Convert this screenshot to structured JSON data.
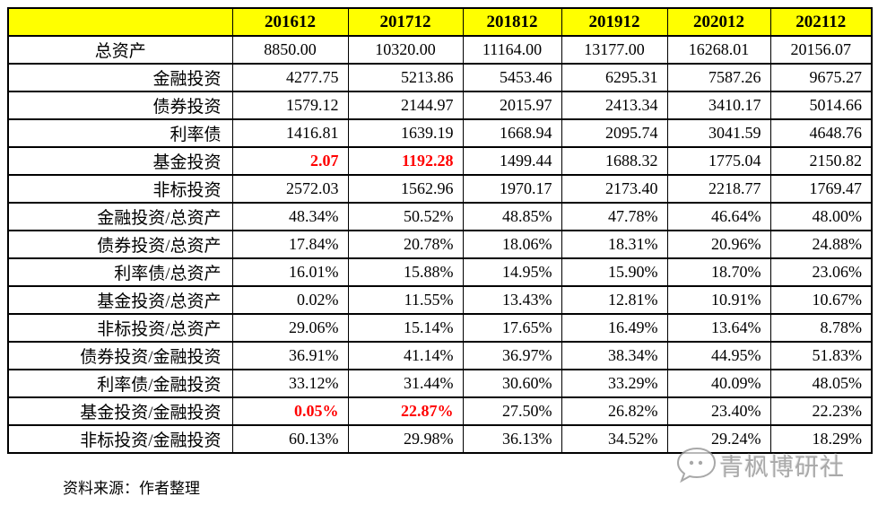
{
  "chart_data": {
    "type": "table",
    "corner_label": "",
    "columns": [
      "201612",
      "201712",
      "201812",
      "201912",
      "202012",
      "202112"
    ],
    "rows": [
      {
        "label": "总资产",
        "values": [
          "8850.00",
          "10320.00",
          "11164.00",
          "13177.00",
          "16268.01",
          "20156.07"
        ],
        "center": true
      },
      {
        "label": "金融投资",
        "values": [
          "4277.75",
          "5213.86",
          "5453.46",
          "6295.31",
          "7587.26",
          "9675.27"
        ]
      },
      {
        "label": "债券投资",
        "values": [
          "1579.12",
          "2144.97",
          "2015.97",
          "2413.34",
          "3410.17",
          "5014.66"
        ]
      },
      {
        "label": "利率债",
        "values": [
          "1416.81",
          "1639.19",
          "1668.94",
          "2095.74",
          "3041.59",
          "4648.76"
        ]
      },
      {
        "label": "基金投资",
        "values": [
          "2.07",
          "1192.28",
          "1499.44",
          "1688.32",
          "1775.04",
          "2150.82"
        ],
        "red": [
          0,
          1
        ]
      },
      {
        "label": "非标投资",
        "values": [
          "2572.03",
          "1562.96",
          "1970.17",
          "2173.40",
          "2218.77",
          "1769.47"
        ]
      },
      {
        "label": "金融投资/总资产",
        "values": [
          "48.34%",
          "50.52%",
          "48.85%",
          "47.78%",
          "46.64%",
          "48.00%"
        ]
      },
      {
        "label": "债券投资/总资产",
        "values": [
          "17.84%",
          "20.78%",
          "18.06%",
          "18.31%",
          "20.96%",
          "24.88%"
        ]
      },
      {
        "label": "利率债/总资产",
        "values": [
          "16.01%",
          "15.88%",
          "14.95%",
          "15.90%",
          "18.70%",
          "23.06%"
        ]
      },
      {
        "label": "基金投资/总资产",
        "values": [
          "0.02%",
          "11.55%",
          "13.43%",
          "12.81%",
          "10.91%",
          "10.67%"
        ]
      },
      {
        "label": "非标投资/总资产",
        "values": [
          "29.06%",
          "15.14%",
          "17.65%",
          "16.49%",
          "13.64%",
          "8.78%"
        ]
      },
      {
        "label": "债券投资/金融投资",
        "values": [
          "36.91%",
          "41.14%",
          "36.97%",
          "38.34%",
          "44.95%",
          "51.83%"
        ]
      },
      {
        "label": "利率债/金融投资",
        "values": [
          "33.12%",
          "31.44%",
          "30.60%",
          "33.29%",
          "40.09%",
          "48.05%"
        ]
      },
      {
        "label": "基金投资/金融投资",
        "values": [
          "0.05%",
          "22.87%",
          "27.50%",
          "26.82%",
          "23.40%",
          "22.23%"
        ],
        "red": [
          0,
          1
        ]
      },
      {
        "label": "非标投资/金融投资",
        "values": [
          "60.13%",
          "29.98%",
          "36.13%",
          "34.52%",
          "29.24%",
          "18.29%"
        ]
      }
    ],
    "title": "",
    "legend": [],
    "grid": true
  },
  "footer": {
    "text": "资料来源：作者整理"
  },
  "watermark": {
    "text": "青枫博研社",
    "icon": "chat-bubble-face-icon"
  },
  "colors": {
    "header_bg": "#FFFF00",
    "highlight_red": "#FF0000",
    "border": "#000000",
    "watermark_gray": "#A9A9A9",
    "background": "#FFFFFF"
  }
}
